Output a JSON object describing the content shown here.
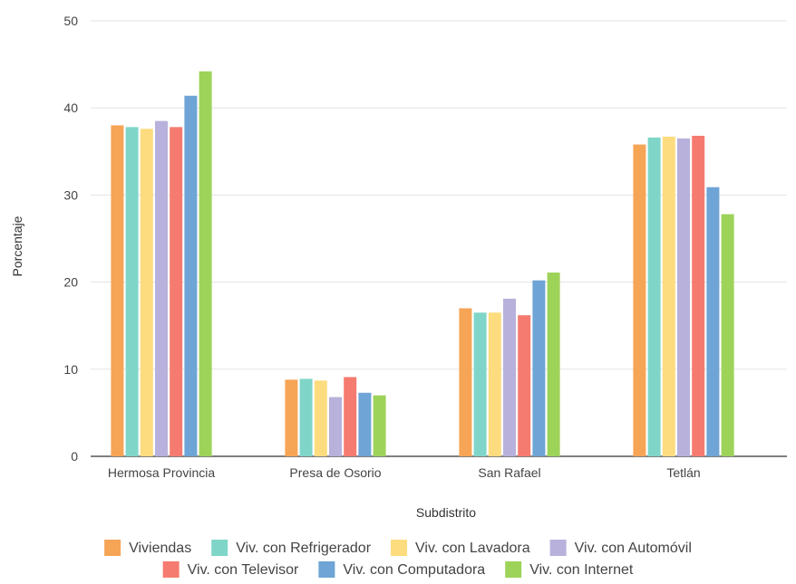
{
  "chart_data": {
    "type": "bar",
    "title": "",
    "xlabel": "Subdistrito",
    "ylabel": "Porcentaje",
    "ylim": [
      0,
      50
    ],
    "yticks": [
      0,
      10,
      20,
      30,
      40,
      50
    ],
    "grid": true,
    "legend_position": "bottom",
    "categories": [
      "Hermosa Provincia",
      "Presa de Osorio",
      "San Rafael",
      "Tetlán"
    ],
    "series": [
      {
        "name": "Viviendas",
        "color": "#f6a455",
        "values": [
          38.0,
          8.8,
          17.0,
          35.8
        ]
      },
      {
        "name": "Viv. con Refrigerador",
        "color": "#7fd6c8",
        "values": [
          37.8,
          8.9,
          16.5,
          36.6
        ]
      },
      {
        "name": "Viv. con Lavadora",
        "color": "#fcdc7e",
        "values": [
          37.6,
          8.7,
          16.5,
          36.7
        ]
      },
      {
        "name": "Viv. con Automóvil",
        "color": "#b7b1db",
        "values": [
          38.5,
          6.8,
          18.1,
          36.5
        ]
      },
      {
        "name": "Viv. con Televisor",
        "color": "#f57b70",
        "values": [
          37.8,
          9.1,
          16.2,
          36.8
        ]
      },
      {
        "name": "Viv. con Computadora",
        "color": "#6fa4d6",
        "values": [
          41.4,
          7.3,
          20.2,
          30.9
        ]
      },
      {
        "name": "Viv. con Internet",
        "color": "#9ed35a",
        "values": [
          44.2,
          7.0,
          21.1,
          27.8
        ]
      }
    ]
  }
}
